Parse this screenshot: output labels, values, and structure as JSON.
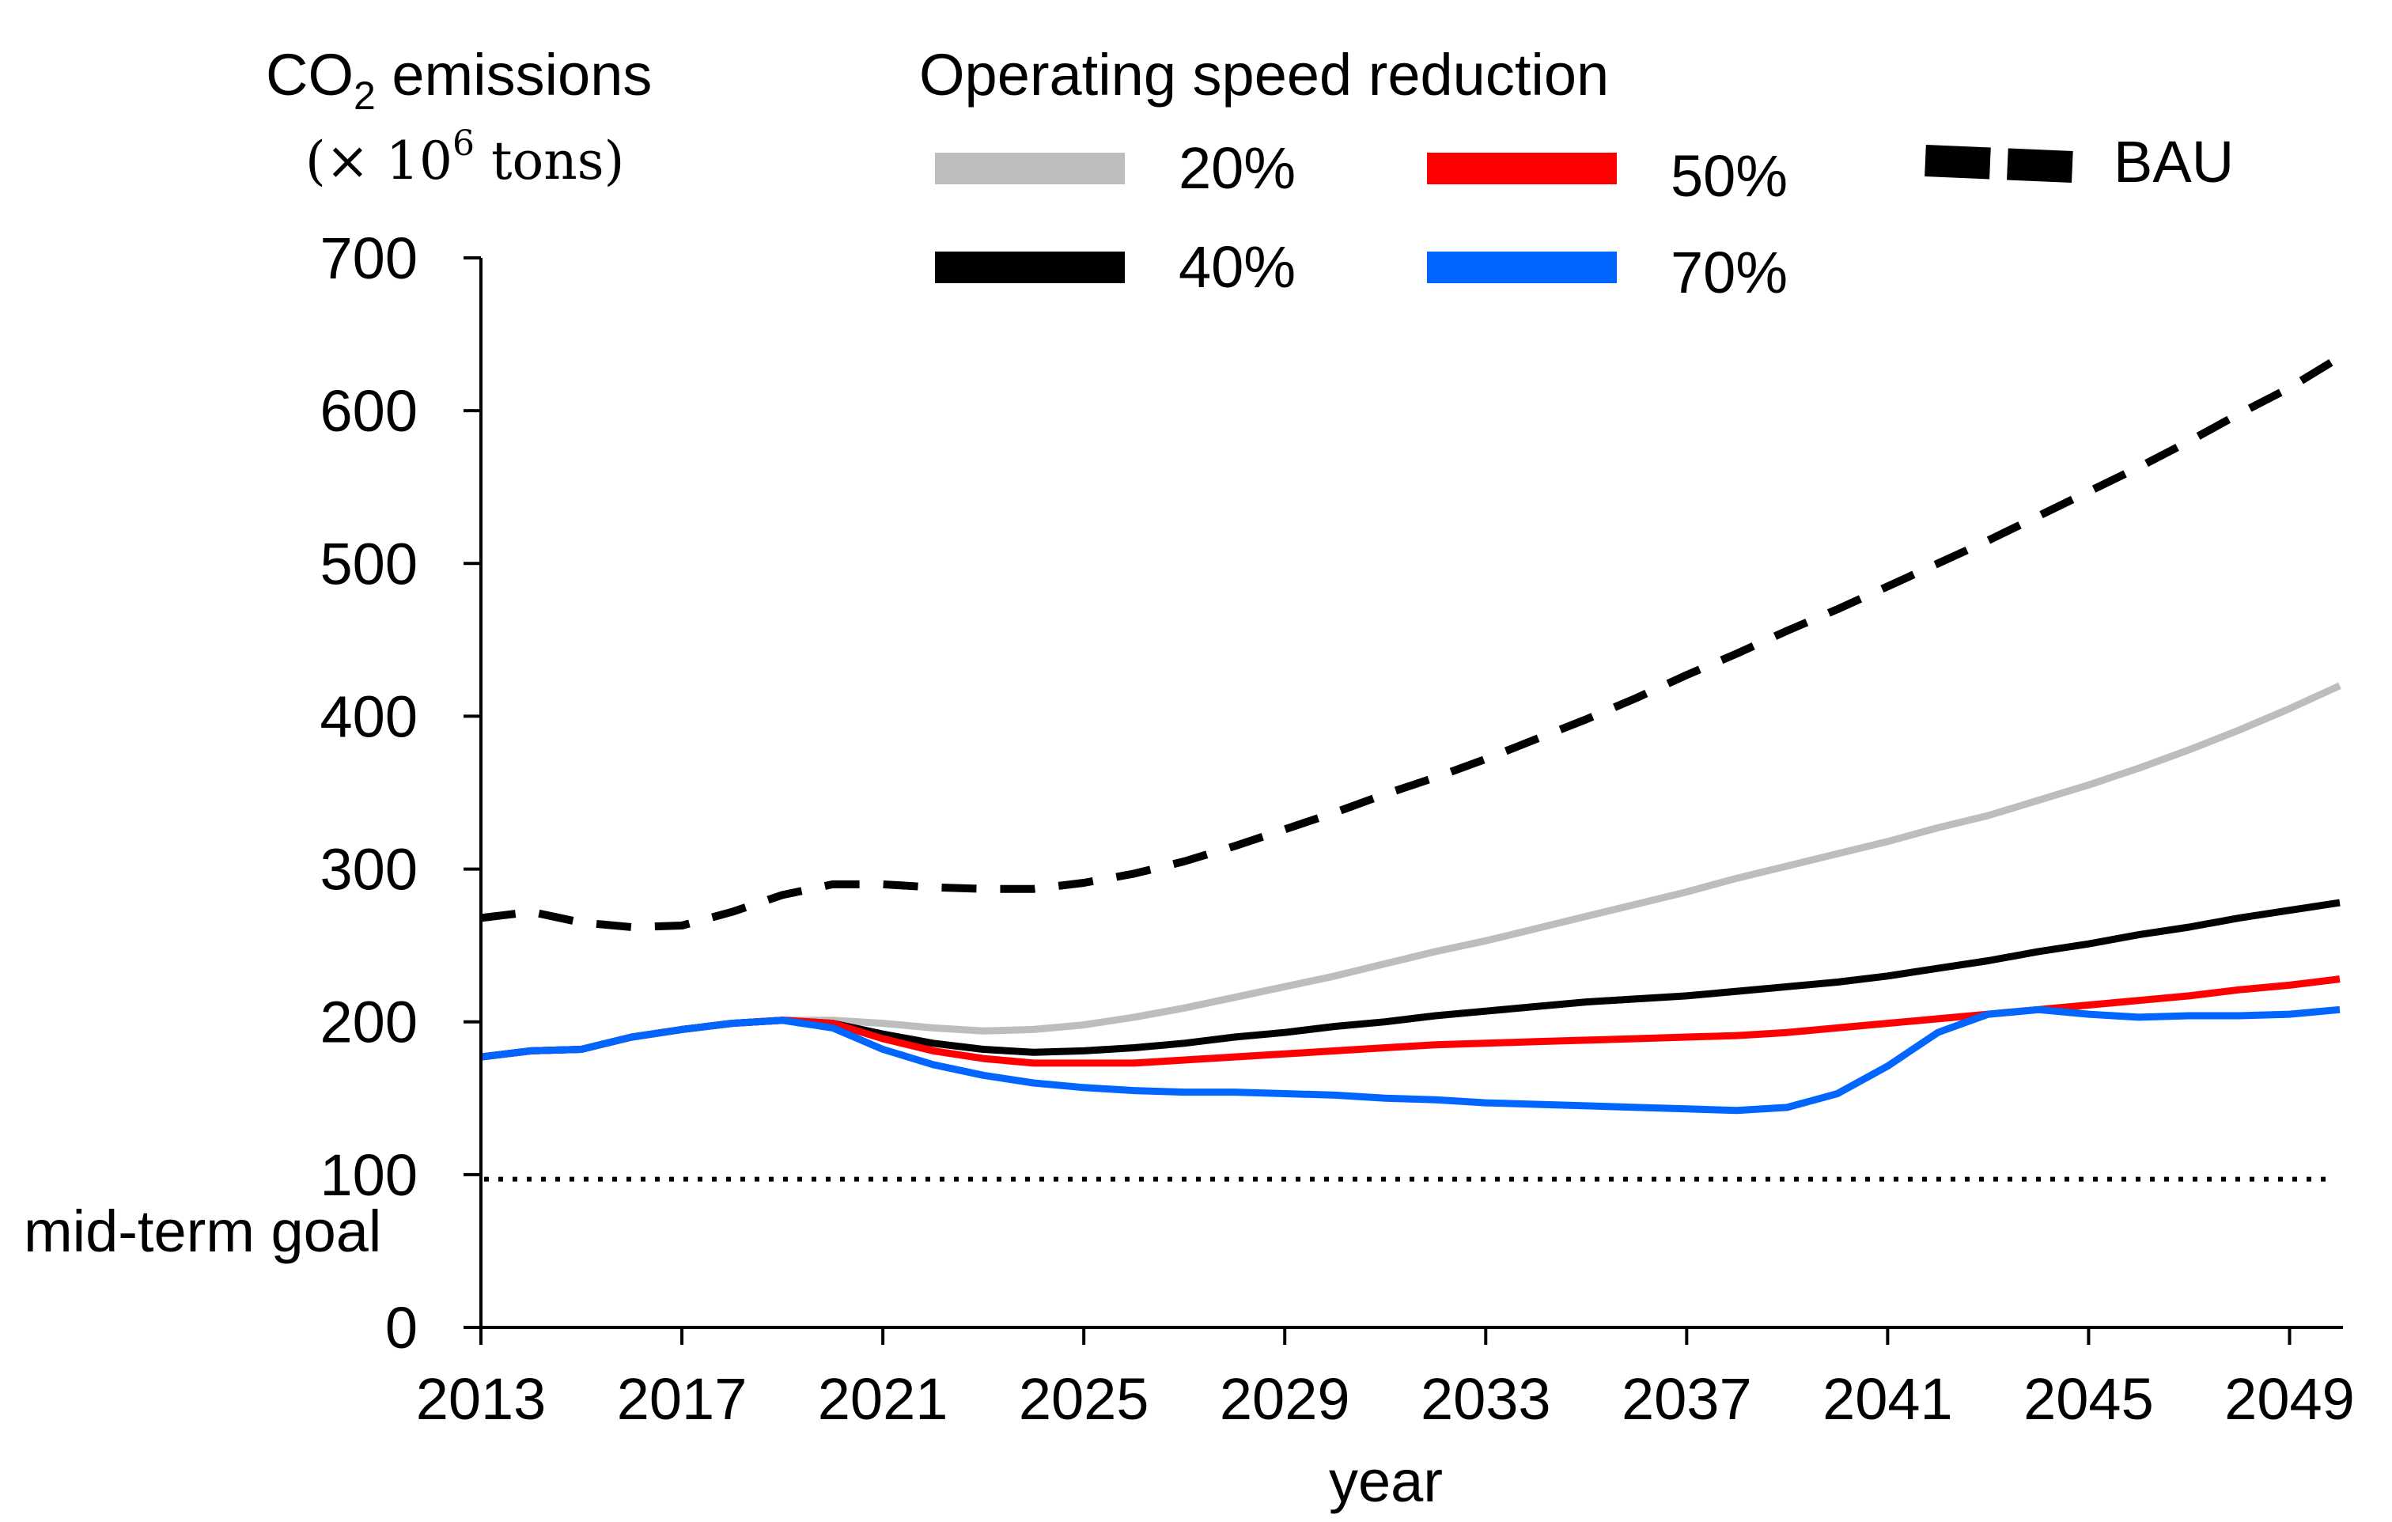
{
  "chart_data": {
    "type": "line",
    "ylabel": "CO",
    "ylabel_subscript": "2",
    "ylabel_suffix": " emissions",
    "yunit_prefix": "(× 10",
    "yunit_exponent": "6",
    "yunit_suffix": " tons)",
    "xlabel": "year",
    "legend_title": "Operating speed reduction",
    "ylim": [
      0,
      700
    ],
    "xlim": [
      2013,
      2050
    ],
    "y_ticks": [
      0,
      100,
      200,
      300,
      400,
      500,
      600,
      700
    ],
    "x_ticks": [
      2013,
      2017,
      2021,
      2025,
      2029,
      2033,
      2037,
      2041,
      2045,
      2049
    ],
    "goal": {
      "label": "mid-term goal",
      "value": 97
    },
    "series": [
      {
        "name": "20%",
        "color": "#bdbdbd",
        "dash": "solid",
        "x": [
          2013,
          2014,
          2015,
          2016,
          2017,
          2018,
          2019,
          2020,
          2021,
          2022,
          2023,
          2024,
          2025,
          2026,
          2027,
          2028,
          2029,
          2030,
          2031,
          2032,
          2033,
          2034,
          2035,
          2036,
          2037,
          2038,
          2039,
          2040,
          2041,
          2042,
          2043,
          2044,
          2045,
          2046,
          2047,
          2048,
          2049,
          2050
        ],
        "y": [
          177,
          181,
          182,
          190,
          195,
          199,
          201,
          201,
          199,
          196,
          194,
          195,
          198,
          203,
          209,
          216,
          223,
          230,
          238,
          246,
          253,
          261,
          269,
          277,
          285,
          294,
          302,
          310,
          318,
          327,
          335,
          345,
          355,
          366,
          378,
          391,
          405,
          420
        ]
      },
      {
        "name": "40%",
        "color": "#000000",
        "dash": "solid",
        "x": [
          2013,
          2014,
          2015,
          2016,
          2017,
          2018,
          2019,
          2020,
          2021,
          2022,
          2023,
          2024,
          2025,
          2026,
          2027,
          2028,
          2029,
          2030,
          2031,
          2032,
          2033,
          2034,
          2035,
          2036,
          2037,
          2038,
          2039,
          2040,
          2041,
          2042,
          2043,
          2044,
          2045,
          2046,
          2047,
          2048,
          2049,
          2050
        ],
        "y": [
          177,
          181,
          182,
          190,
          195,
          199,
          201,
          199,
          192,
          186,
          182,
          180,
          181,
          183,
          186,
          190,
          193,
          197,
          200,
          204,
          207,
          210,
          213,
          215,
          217,
          220,
          223,
          226,
          230,
          235,
          240,
          246,
          251,
          257,
          262,
          268,
          273,
          278
        ]
      },
      {
        "name": "50%",
        "color": "#ff0000",
        "dash": "solid",
        "x": [
          2013,
          2014,
          2015,
          2016,
          2017,
          2018,
          2019,
          2020,
          2021,
          2022,
          2023,
          2024,
          2025,
          2026,
          2027,
          2028,
          2029,
          2030,
          2031,
          2032,
          2033,
          2034,
          2035,
          2036,
          2037,
          2038,
          2039,
          2040,
          2041,
          2042,
          2043,
          2044,
          2045,
          2046,
          2047,
          2048,
          2049,
          2050
        ],
        "y": [
          177,
          181,
          182,
          190,
          195,
          199,
          201,
          199,
          189,
          181,
          176,
          173,
          173,
          173,
          175,
          177,
          179,
          181,
          183,
          185,
          186,
          187,
          188,
          189,
          190,
          191,
          193,
          196,
          199,
          202,
          205,
          208,
          211,
          214,
          217,
          221,
          224,
          228
        ]
      },
      {
        "name": "70%",
        "color": "#0066ff",
        "dash": "solid",
        "x": [
          2013,
          2014,
          2015,
          2016,
          2017,
          2018,
          2019,
          2020,
          2021,
          2022,
          2023,
          2024,
          2025,
          2026,
          2027,
          2028,
          2029,
          2030,
          2031,
          2032,
          2033,
          2034,
          2035,
          2036,
          2037,
          2038,
          2039,
          2040,
          2041,
          2042,
          2043,
          2044,
          2045,
          2046,
          2047,
          2048,
          2049,
          2050
        ],
        "y": [
          177,
          181,
          182,
          190,
          195,
          199,
          201,
          196,
          182,
          172,
          165,
          160,
          157,
          155,
          154,
          154,
          153,
          152,
          150,
          149,
          147,
          146,
          145,
          144,
          143,
          142,
          144,
          153,
          171,
          193,
          205,
          208,
          205,
          203,
          204,
          204,
          205,
          208
        ]
      },
      {
        "name": "BAU",
        "color": "#000000",
        "dash": "dashed",
        "x": [
          2013,
          2014,
          2015,
          2016,
          2017,
          2018,
          2019,
          2020,
          2021,
          2022,
          2023,
          2024,
          2025,
          2026,
          2027,
          2028,
          2029,
          2030,
          2031,
          2032,
          2033,
          2034,
          2035,
          2036,
          2037,
          2038,
          2039,
          2040,
          2041,
          2042,
          2043,
          2044,
          2045,
          2046,
          2047,
          2048,
          2049,
          2050
        ],
        "y": [
          268,
          272,
          265,
          262,
          263,
          272,
          283,
          290,
          290,
          288,
          287,
          287,
          291,
          297,
          305,
          315,
          326,
          337,
          349,
          360,
          372,
          385,
          398,
          412,
          427,
          441,
          456,
          470,
          485,
          500,
          515,
          531,
          547,
          563,
          580,
          598,
          615,
          635
        ]
      }
    ]
  }
}
